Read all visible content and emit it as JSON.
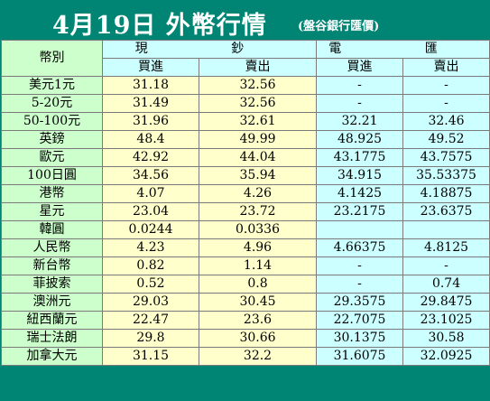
{
  "header": {
    "title": "4月19日 外幣行情",
    "bank": "(盤谷銀行匯價)"
  },
  "columns": {
    "currency": "幣別",
    "cash": "現  鈔",
    "wire": "電  匯",
    "buy": "買進",
    "sell": "賣出"
  },
  "rows": [
    {
      "name": "美元1元",
      "cash_buy": "31.18",
      "cash_sell": "32.56",
      "wire_buy": "-",
      "wire_sell": "-"
    },
    {
      "name": "5-20元",
      "cash_buy": "31.49",
      "cash_sell": "32.56",
      "wire_buy": "-",
      "wire_sell": "-"
    },
    {
      "name": "50-100元",
      "cash_buy": "31.96",
      "cash_sell": "32.61",
      "wire_buy": "32.21",
      "wire_sell": "32.46"
    },
    {
      "name": "英鎊",
      "cash_buy": "48.4",
      "cash_sell": "49.99",
      "wire_buy": "48.925",
      "wire_sell": "49.52"
    },
    {
      "name": "歐元",
      "cash_buy": "42.92",
      "cash_sell": "44.04",
      "wire_buy": "43.1775",
      "wire_sell": "43.7575"
    },
    {
      "name": "100日圓",
      "cash_buy": "34.56",
      "cash_sell": "35.94",
      "wire_buy": "34.915",
      "wire_sell": "35.53375"
    },
    {
      "name": "港幣",
      "cash_buy": "4.07",
      "cash_sell": "4.26",
      "wire_buy": "4.1425",
      "wire_sell": "4.18875"
    },
    {
      "name": "星元",
      "cash_buy": "23.04",
      "cash_sell": "23.72",
      "wire_buy": "23.2175",
      "wire_sell": "23.6375"
    },
    {
      "name": "韓圓",
      "cash_buy": "0.0244",
      "cash_sell": "0.0336",
      "wire_buy": "",
      "wire_sell": ""
    },
    {
      "name": "人民幣",
      "cash_buy": "4.23",
      "cash_sell": "4.96",
      "wire_buy": "4.66375",
      "wire_sell": "4.8125"
    },
    {
      "name": "新台幣",
      "cash_buy": "0.82",
      "cash_sell": "1.14",
      "wire_buy": "-",
      "wire_sell": "-"
    },
    {
      "name": "菲披索",
      "cash_buy": "0.52",
      "cash_sell": "0.8",
      "wire_buy": "-",
      "wire_sell": "0.74"
    },
    {
      "name": "澳洲元",
      "cash_buy": "29.03",
      "cash_sell": "30.45",
      "wire_buy": "29.3575",
      "wire_sell": "29.8475"
    },
    {
      "name": "紐西蘭元",
      "cash_buy": "22.47",
      "cash_sell": "23.6",
      "wire_buy": "22.7075",
      "wire_sell": "23.1025"
    },
    {
      "name": "瑞士法朗",
      "cash_buy": "29.8",
      "cash_sell": "30.66",
      "wire_buy": "30.1375",
      "wire_sell": "30.58"
    },
    {
      "name": "加拿大元",
      "cash_buy": "31.15",
      "cash_sell": "32.2",
      "wire_buy": "31.6075",
      "wire_sell": "32.0925"
    }
  ],
  "colors": {
    "title_bg": "#008575",
    "name_col": "#ccffcc",
    "cash_col": "#ffffcc",
    "wire_col": "#ccffff"
  }
}
